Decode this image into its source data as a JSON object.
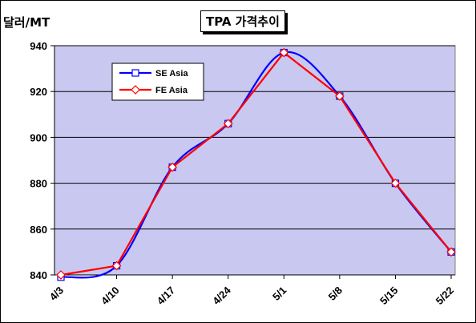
{
  "chart_data": {
    "type": "line",
    "title": "TPA 가격추이",
    "ylabel": "달러/MT",
    "categories": [
      "4/3",
      "4/10",
      "4/17",
      "4/24",
      "5/1",
      "5/8",
      "5/15",
      "5/22"
    ],
    "ylim": [
      840,
      940
    ],
    "yticks": [
      840,
      860,
      880,
      900,
      920,
      940
    ],
    "grid": "horizontal",
    "legend_position": "top-left",
    "plot_background": "#c8c8f0",
    "series": [
      {
        "name": "SE Asia",
        "values": [
          839,
          844,
          887,
          906,
          937,
          918,
          880,
          850
        ],
        "color": "#0000ff",
        "marker": "square"
      },
      {
        "name": "FE Asia",
        "values": [
          840,
          844,
          887,
          906,
          937,
          918,
          880,
          850
        ],
        "color": "#ff0000",
        "marker": "diamond"
      }
    ]
  }
}
